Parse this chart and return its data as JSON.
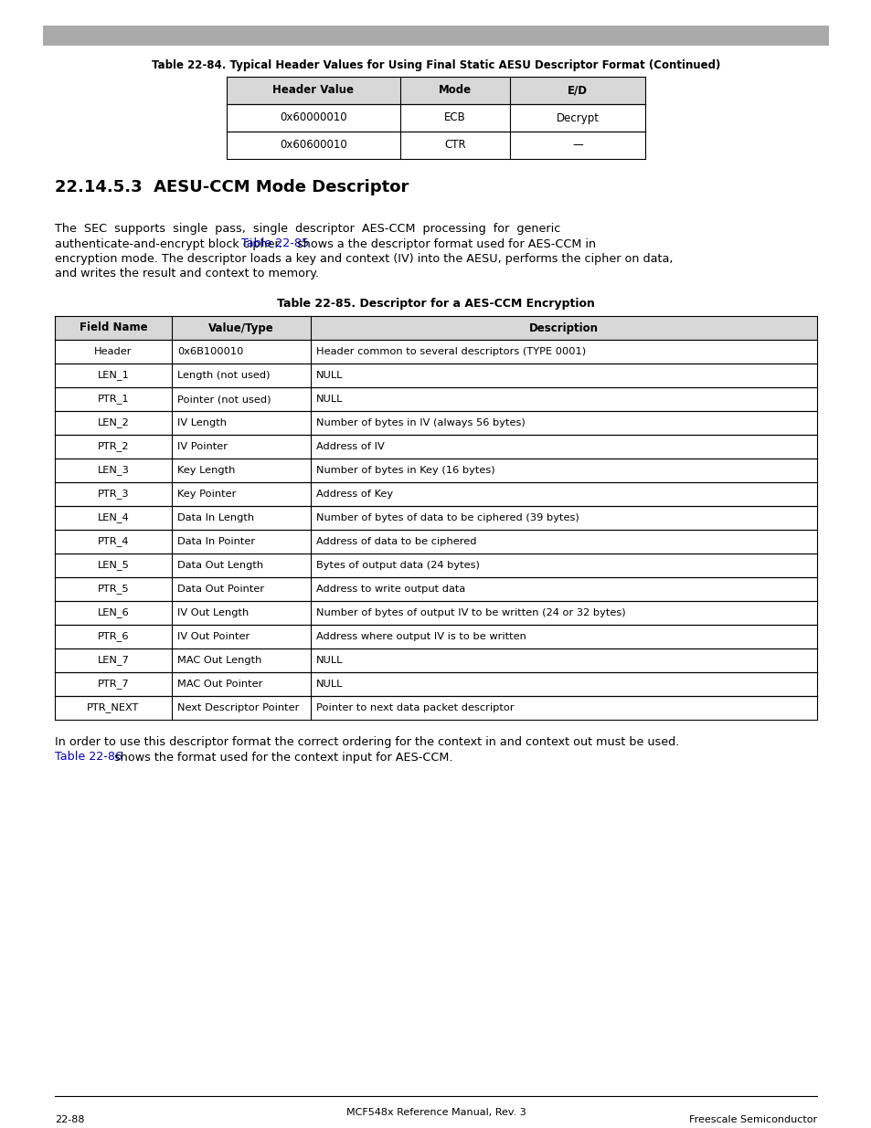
{
  "page_bg": "#ffffff",
  "top_bar_color": "#aaaaaa",
  "title1": "Table 22-84. Typical Header Values for Using Final Static AESU Descriptor Format (Continued)",
  "table1_headers": [
    "Header Value",
    "Mode",
    "E/D"
  ],
  "table1_rows": [
    [
      "0x60000010",
      "ECB",
      "Decrypt"
    ],
    [
      "0x60600010",
      "CTR",
      "—"
    ]
  ],
  "section_title": "22.14.5.3  AESU-CCM Mode Descriptor",
  "body_line1": "The  SEC  supports  single  pass,  single  descriptor  AES-CCM  processing  for  generic",
  "body_line2_pre": "authenticate-and-encrypt block cipher. ",
  "body_line2_link": "Table 22-85",
  "body_line2_post": " shows a the descriptor format used for AES-CCM in",
  "body_line3": "encryption mode. The descriptor loads a key and context (IV) into the AESU, performs the cipher on data,",
  "body_line4": "and writes the result and context to memory.",
  "title2": "Table 22-85. Descriptor for a AES-CCM Encryption",
  "table2_headers": [
    "Field Name",
    "Value/Type",
    "Description"
  ],
  "table2_rows": [
    [
      "Header",
      "0x6B100010",
      "Header common to several descriptors (TYPE 0001)"
    ],
    [
      "LEN_1",
      "Length (not used)",
      "NULL"
    ],
    [
      "PTR_1",
      "Pointer (not used)",
      "NULL"
    ],
    [
      "LEN_2",
      "IV Length",
      "Number of bytes in IV (always 56 bytes)"
    ],
    [
      "PTR_2",
      "IV Pointer",
      "Address of IV"
    ],
    [
      "LEN_3",
      "Key Length",
      "Number of bytes in Key (16 bytes)"
    ],
    [
      "PTR_3",
      "Key Pointer",
      "Address of Key"
    ],
    [
      "LEN_4",
      "Data In Length",
      "Number of bytes of data to be ciphered (39 bytes)"
    ],
    [
      "PTR_4",
      "Data In Pointer",
      "Address of data to be ciphered"
    ],
    [
      "LEN_5",
      "Data Out Length",
      "Bytes of output data (24 bytes)"
    ],
    [
      "PTR_5",
      "Data Out Pointer",
      "Address to write output data"
    ],
    [
      "LEN_6",
      "IV Out Length",
      "Number of bytes of output IV to be written (24 or 32 bytes)"
    ],
    [
      "PTR_6",
      "IV Out Pointer",
      "Address where output IV is to be written"
    ],
    [
      "LEN_7",
      "MAC Out Length",
      "NULL"
    ],
    [
      "PTR_7",
      "MAC Out Pointer",
      "NULL"
    ],
    [
      "PTR_NEXT",
      "Next Descriptor Pointer",
      "Pointer to next data packet descriptor"
    ]
  ],
  "footer_line1": "In order to use this descriptor format the correct ordering for the context in and context out must be used.",
  "footer_line2_link": "Table 22-86",
  "footer_line2_post": " shows the format used for the context input for AES-CCM.",
  "bottom_center": "MCF548x Reference Manual, Rev. 3",
  "bottom_left": "22-88",
  "bottom_right": "Freescale Semiconductor",
  "link_color": "#0000cc",
  "text_color": "#000000",
  "header_bg": "#d8d8d8",
  "border_color": "#000000"
}
